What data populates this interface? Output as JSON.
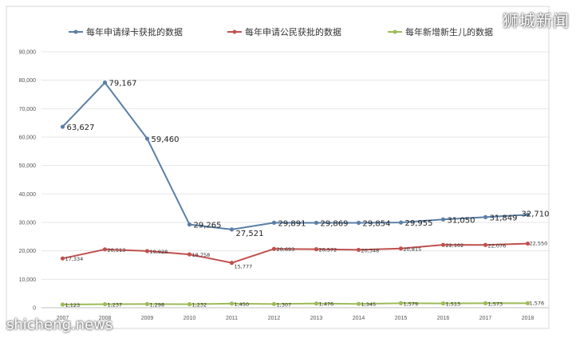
{
  "watermark": {
    "top_right": "狮城新闻",
    "bottom_left": "shicheng.news"
  },
  "chart_data": {
    "type": "line",
    "title": "",
    "xlabel": "",
    "ylabel": "",
    "ylim": [
      0,
      90000
    ],
    "yticks": [
      "0",
      "10,000",
      "20,000",
      "30,000",
      "40,000",
      "50,000",
      "60,000",
      "70,000",
      "80,000",
      "90,000"
    ],
    "categories": [
      "2007",
      "2008",
      "2009",
      "2010",
      "2011",
      "2012",
      "2013",
      "2014",
      "2015",
      "2016",
      "2017",
      "2018"
    ],
    "grid": true,
    "legend": "top",
    "series": [
      {
        "name": "每年申请绿卡获批的数据",
        "color": "#5b7fa6",
        "values": [
          63627,
          79167,
          59460,
          29265,
          27521,
          29891,
          29869,
          29854,
          29955,
          31050,
          31849,
          32710
        ],
        "labels": [
          "63,627",
          "79,167",
          "59,460",
          "29,265",
          "27,521",
          "29,891",
          "29,869",
          "29,854",
          "29,955",
          "31,050",
          "31,849",
          "32,710"
        ]
      },
      {
        "name": "每年申请公民获批的数据",
        "color": "#c0504d",
        "values": [
          17334,
          20513,
          19928,
          18758,
          15777,
          20693,
          20572,
          20348,
          20815,
          22102,
          22076,
          22550
        ],
        "labels": [
          "17,334",
          "20,513",
          "19,928",
          "18,758",
          "15,777",
          "20,693",
          "20,572",
          "20,348",
          "20,815",
          "22,102",
          "22,076",
          "22,550"
        ]
      },
      {
        "name": "每年新增新生儿的数据",
        "color": "#9bbb59",
        "values": [
          1123,
          1237,
          1298,
          1232,
          1450,
          1307,
          1476,
          1345,
          1579,
          1513,
          1573,
          1576
        ],
        "labels": [
          "1,123",
          "1,237",
          "1,298",
          "1,232",
          "1,450",
          "1,307",
          "1,476",
          "1,345",
          "1,579",
          "1,513",
          "1,573",
          "1,576"
        ]
      }
    ]
  }
}
